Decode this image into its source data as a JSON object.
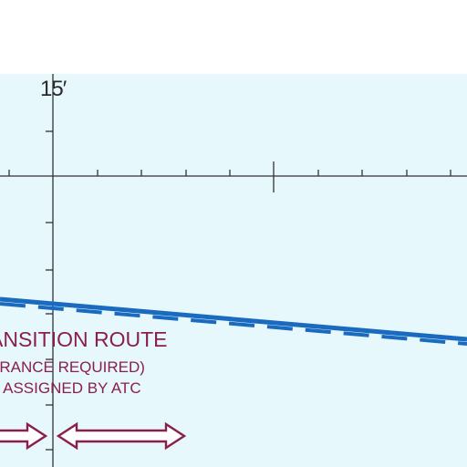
{
  "grid": {
    "minute_label": "15′"
  },
  "airspace": {
    "route_title": "ANSITION ROUTE",
    "route_note": "ARANCE REQUIRED)",
    "route_altitude": "E ASSIGNED BY ATC"
  },
  "colors": {
    "background": "#e6f8fb",
    "route_line": "#1a6bbf",
    "route_text": "#8a1f4c",
    "grid_ticks": "#333333",
    "arrow_outline": "#8a1f4c"
  },
  "symbols": {
    "route_line": "dashed-airway-line",
    "arrows": "double-headed-arrow"
  }
}
